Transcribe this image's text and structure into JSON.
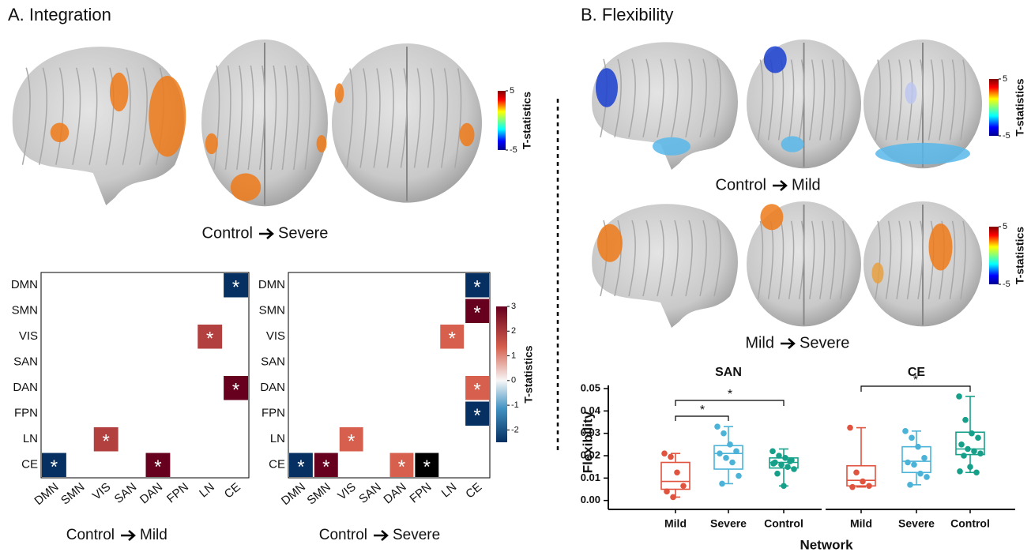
{
  "panel_a": {
    "title": "A. Integration",
    "brain_caption": {
      "from": "Control",
      "to": "Severe"
    },
    "colorbar": {
      "label": "T-statistics",
      "lim": [
        -5,
        5
      ],
      "ticks": [
        5,
        -5
      ]
    },
    "heatmaps": [
      {
        "caption": {
          "from": "Control",
          "to": "Mild"
        },
        "values": [
          [
            null,
            null,
            null,
            null,
            null,
            null,
            null,
            -2.5
          ],
          [
            null,
            null,
            null,
            null,
            null,
            null,
            null,
            null
          ],
          [
            null,
            null,
            null,
            null,
            null,
            null,
            2,
            null
          ],
          [
            null,
            null,
            null,
            null,
            null,
            null,
            null,
            null
          ],
          [
            null,
            null,
            null,
            null,
            null,
            null,
            null,
            3
          ],
          [
            null,
            null,
            null,
            null,
            null,
            null,
            null,
            null
          ],
          [
            null,
            null,
            2,
            null,
            null,
            null,
            null,
            null
          ],
          [
            -2.5,
            null,
            null,
            null,
            3,
            null,
            null,
            null
          ]
        ],
        "labels": [
          [
            null,
            null,
            null,
            null,
            null,
            null,
            null,
            "*"
          ],
          [
            null,
            null,
            null,
            null,
            null,
            null,
            null,
            null
          ],
          [
            null,
            null,
            null,
            null,
            null,
            null,
            "*",
            null
          ],
          [
            null,
            null,
            null,
            null,
            null,
            null,
            null,
            null
          ],
          [
            null,
            null,
            null,
            null,
            null,
            null,
            null,
            "*"
          ],
          [
            null,
            null,
            null,
            null,
            null,
            null,
            null,
            null
          ],
          [
            null,
            null,
            "*",
            null,
            null,
            null,
            null,
            null
          ],
          [
            "*",
            null,
            null,
            null,
            "*",
            null,
            null,
            null
          ]
        ]
      },
      {
        "caption": {
          "from": "Control",
          "to": "Severe"
        },
        "values": [
          [
            null,
            null,
            null,
            null,
            null,
            null,
            null,
            -2.5
          ],
          [
            null,
            null,
            null,
            null,
            null,
            null,
            null,
            3
          ],
          [
            null,
            null,
            null,
            null,
            null,
            null,
            1.5,
            null
          ],
          [
            null,
            null,
            null,
            null,
            null,
            null,
            null,
            null
          ],
          [
            null,
            null,
            null,
            null,
            null,
            null,
            null,
            1.5
          ],
          [
            null,
            null,
            null,
            null,
            null,
            null,
            null,
            -2.5
          ],
          [
            null,
            null,
            1.5,
            null,
            null,
            null,
            null,
            null
          ],
          [
            -2.5,
            3,
            null,
            null,
            1.5,
            -2.7,
            null,
            null
          ]
        ],
        "labels": [
          [
            null,
            null,
            null,
            null,
            null,
            null,
            null,
            "*"
          ],
          [
            null,
            null,
            null,
            null,
            null,
            null,
            null,
            "*"
          ],
          [
            null,
            null,
            null,
            null,
            null,
            null,
            "*",
            null
          ],
          [
            null,
            null,
            null,
            null,
            null,
            null,
            null,
            null
          ],
          [
            null,
            null,
            null,
            null,
            null,
            null,
            null,
            "*"
          ],
          [
            null,
            null,
            null,
            null,
            null,
            null,
            null,
            "*"
          ],
          [
            null,
            null,
            "*",
            null,
            null,
            null,
            null,
            null
          ],
          [
            "*",
            "*",
            null,
            null,
            "*",
            "*",
            null,
            null
          ]
        ]
      }
    ],
    "categories": [
      "DMN",
      "SMN",
      "VIS",
      "SAN",
      "DAN",
      "FPN",
      "LN",
      "CE"
    ],
    "heatmap_colorbar": {
      "label": "T-statistics",
      "lim": [
        -2.5,
        3
      ],
      "ticks": [
        3,
        2,
        1,
        0,
        -1,
        -2
      ]
    }
  },
  "panel_b": {
    "title": "B. Flexibility",
    "brain_rows": [
      {
        "caption": {
          "from": "Control",
          "to": "Mild"
        },
        "colorbar": {
          "label": "T-statistics",
          "lim": [
            -5,
            5
          ],
          "ticks": [
            5,
            -5
          ]
        }
      },
      {
        "caption": {
          "from": "Mild",
          "to": "Severe"
        },
        "colorbar": {
          "label": "T-statistics",
          "lim": [
            -5,
            5
          ],
          "ticks": [
            5,
            -5
          ]
        }
      }
    ],
    "boxplot": {
      "ylabel": "Flexibility",
      "xlabel": "Network",
      "ylim": [
        -0.004,
        0.05
      ],
      "yticks": [
        {
          "value": 0,
          "label": "0.00"
        },
        {
          "value": 0.01,
          "label": "0.01"
        },
        {
          "value": 0.02,
          "label": "0.02"
        },
        {
          "value": 0.03,
          "label": "0.03"
        },
        {
          "value": 0.04,
          "label": "0.04"
        },
        {
          "value": 0.05,
          "label": "0.05"
        }
      ],
      "groups": [
        {
          "name": "SAN",
          "significance": [
            "*",
            "*"
          ],
          "boxes": [
            {
              "name": "Mild",
              "color": "#e0533f",
              "low": 0.0015,
              "q1": 0.005,
              "median": 0.0085,
              "q3": 0.017,
              "high": 0.021,
              "points": [
                0.021,
                0.0195,
                0.0125,
                0.0065,
                0.004,
                0.0015
              ]
            },
            {
              "name": "Severe",
              "color": "#4bb3d8",
              "low": 0.0075,
              "q1": 0.014,
              "median": 0.021,
              "q3": 0.0245,
              "high": 0.033,
              "points": [
                0.033,
                0.03,
                0.025,
                0.022,
                0.021,
                0.019,
                0.017,
                0.011,
                0.0075
              ]
            },
            {
              "name": "Control",
              "color": "#16a08a",
              "low": 0.0065,
              "q1": 0.0145,
              "median": 0.017,
              "q3": 0.019,
              "high": 0.023,
              "points": [
                0.022,
                0.02,
                0.019,
                0.018,
                0.017,
                0.016,
                0.015,
                0.014,
                0.012,
                0.0065,
                0.0175,
                0.0165
              ]
            }
          ]
        },
        {
          "name": "CE",
          "significance": [
            "*"
          ],
          "boxes": [
            {
              "name": "Mild",
              "color": "#e0533f",
              "low": 0.006,
              "q1": 0.0065,
              "median": 0.009,
              "q3": 0.0155,
              "high": 0.0325,
              "points": [
                0.0325,
                0.0125,
                0.0085,
                0.0065,
                0.006
              ]
            },
            {
              "name": "Severe",
              "color": "#4bb3d8",
              "low": 0.007,
              "q1": 0.0125,
              "median": 0.0175,
              "q3": 0.024,
              "high": 0.031,
              "points": [
                0.031,
                0.028,
                0.024,
                0.019,
                0.017,
                0.016,
                0.012,
                0.0105,
                0.007
              ]
            },
            {
              "name": "Control",
              "color": "#16a08a",
              "low": 0.0125,
              "q1": 0.0205,
              "median": 0.023,
              "q3": 0.0305,
              "high": 0.0465,
              "points": [
                0.0465,
                0.036,
                0.03,
                0.028,
                0.025,
                0.023,
                0.022,
                0.021,
                0.02,
                0.015,
                0.0125,
                0.013
              ]
            }
          ]
        }
      ]
    }
  }
}
